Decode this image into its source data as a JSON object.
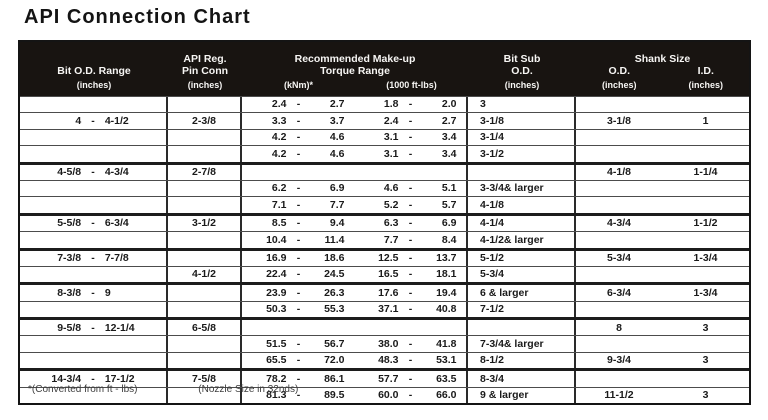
{
  "title": "API Connection Chart",
  "colors": {
    "header_bg": "#181411",
    "grid_line": "#2a2a2a",
    "text": "#1a1a1a"
  },
  "header": {
    "bit_od": {
      "line1": "Bit O.D. Range",
      "unit": "(inches)"
    },
    "pin_conn": {
      "line1": "API Reg.",
      "line2": "Pin Conn",
      "unit": "(inches)"
    },
    "torque": {
      "line1": "Recommended Make-up",
      "line2": "Torque Range",
      "sub1": "(kNm)*",
      "sub2": "(1000 ft-lbs)"
    },
    "bit_sub": {
      "line1": "Bit Sub",
      "line2": "O.D.",
      "unit": "(inches)"
    },
    "shank": {
      "line1": "Shank Size",
      "od": "O.D.",
      "id": "I.D.",
      "unit_od": "(inches)",
      "unit_id": "(inches)"
    }
  },
  "rows": [
    {
      "od": null,
      "pin": "",
      "knm": [
        "2.4",
        "2.7"
      ],
      "ftlb": [
        "1.8",
        "2.0"
      ],
      "sub": "3",
      "sod": "",
      "sid": "",
      "g": false
    },
    {
      "od": [
        "4",
        "4-1/2"
      ],
      "pin": "2-3/8",
      "knm": [
        "3.3",
        "3.7"
      ],
      "ftlb": [
        "2.4",
        "2.7"
      ],
      "sub": "3-1/8",
      "sod": "3-1/8",
      "sid": "1",
      "g": false
    },
    {
      "od": null,
      "pin": "",
      "knm": [
        "4.2",
        "4.6"
      ],
      "ftlb": [
        "3.1",
        "3.4"
      ],
      "sub": "3-1/4",
      "sod": "",
      "sid": "",
      "g": false
    },
    {
      "od": null,
      "pin": "",
      "knm": [
        "4.2",
        "4.6"
      ],
      "ftlb": [
        "3.1",
        "3.4"
      ],
      "sub": "3-1/2",
      "sod": "",
      "sid": "",
      "g": false
    },
    {
      "od": [
        "4-5/8",
        "4-3/4"
      ],
      "pin": "2-7/8",
      "knm": null,
      "ftlb": null,
      "sub": "",
      "sod": "4-1/8",
      "sid": "1-1/4",
      "g": true
    },
    {
      "od": null,
      "pin": "",
      "knm": [
        "6.2",
        "6.9"
      ],
      "ftlb": [
        "4.6",
        "5.1"
      ],
      "sub": "3-3/4& larger",
      "sod": "",
      "sid": "",
      "g": false
    },
    {
      "od": null,
      "pin": "",
      "knm": [
        "7.1",
        "7.7"
      ],
      "ftlb": [
        "5.2",
        "5.7"
      ],
      "sub": "4-1/8",
      "sod": "",
      "sid": "",
      "g": false
    },
    {
      "od": [
        "5-5/8",
        "6-3/4"
      ],
      "pin": "3-1/2",
      "knm": [
        "8.5",
        "9.4"
      ],
      "ftlb": [
        "6.3",
        "6.9"
      ],
      "sub": "4-1/4",
      "sod": "4-3/4",
      "sid": "1-1/2",
      "g": true
    },
    {
      "od": null,
      "pin": "",
      "knm": [
        "10.4",
        "11.4"
      ],
      "ftlb": [
        "7.7",
        "8.4"
      ],
      "sub": "4-1/2& larger",
      "sod": "",
      "sid": "",
      "g": false
    },
    {
      "od": [
        "7-3/8",
        "7-7/8"
      ],
      "pin": "",
      "knm": [
        "16.9",
        "18.6"
      ],
      "ftlb": [
        "12.5",
        "13.7"
      ],
      "sub": "5-1/2",
      "sod": "5-3/4",
      "sid": "1-3/4",
      "g": true
    },
    {
      "od": null,
      "pin": "4-1/2",
      "knm": [
        "22.4",
        "24.5"
      ],
      "ftlb": [
        "16.5",
        "18.1"
      ],
      "sub": "5-3/4",
      "sod": "",
      "sid": "",
      "g": false
    },
    {
      "od": [
        "8-3/8",
        "9"
      ],
      "pin": "",
      "knm": [
        "23.9",
        "26.3"
      ],
      "ftlb": [
        "17.6",
        "19.4"
      ],
      "sub": "6 & larger",
      "sod": "6-3/4",
      "sid": "1-3/4",
      "g": true
    },
    {
      "od": null,
      "pin": "",
      "knm": [
        "50.3",
        "55.3"
      ],
      "ftlb": [
        "37.1",
        "40.8"
      ],
      "sub": "7-1/2",
      "sod": "",
      "sid": "",
      "g": false
    },
    {
      "od": [
        "9-5/8",
        "12-1/4"
      ],
      "pin": "6-5/8",
      "knm": null,
      "ftlb": null,
      "sub": "",
      "sod": "8",
      "sid": "3",
      "g": true
    },
    {
      "od": null,
      "pin": "",
      "knm": [
        "51.5",
        "56.7"
      ],
      "ftlb": [
        "38.0",
        "41.8"
      ],
      "sub": "7-3/4& larger",
      "sod": "",
      "sid": "",
      "g": false
    },
    {
      "od": null,
      "pin": "",
      "knm": [
        "65.5",
        "72.0"
      ],
      "ftlb": [
        "48.3",
        "53.1"
      ],
      "sub": "8-1/2",
      "sod": "9-3/4",
      "sid": "3",
      "g": false
    },
    {
      "od": [
        "14-3/4",
        "17-1/2"
      ],
      "pin": "7-5/8",
      "knm": [
        "78.2",
        "86.1"
      ],
      "ftlb": [
        "57.7",
        "63.5"
      ],
      "sub": "8-3/4",
      "sod": "",
      "sid": "",
      "g": true
    },
    {
      "od": null,
      "pin": "",
      "knm": [
        "81.3",
        "89.5"
      ],
      "ftlb": [
        "60.0",
        "66.0"
      ],
      "sub": "9 & larger",
      "sod": "11-1/2",
      "sid": "3",
      "g": false
    }
  ],
  "footnotes": {
    "left": "*(Converted from ft - lbs)",
    "right": "(Nozzle Size in 32nds)"
  }
}
